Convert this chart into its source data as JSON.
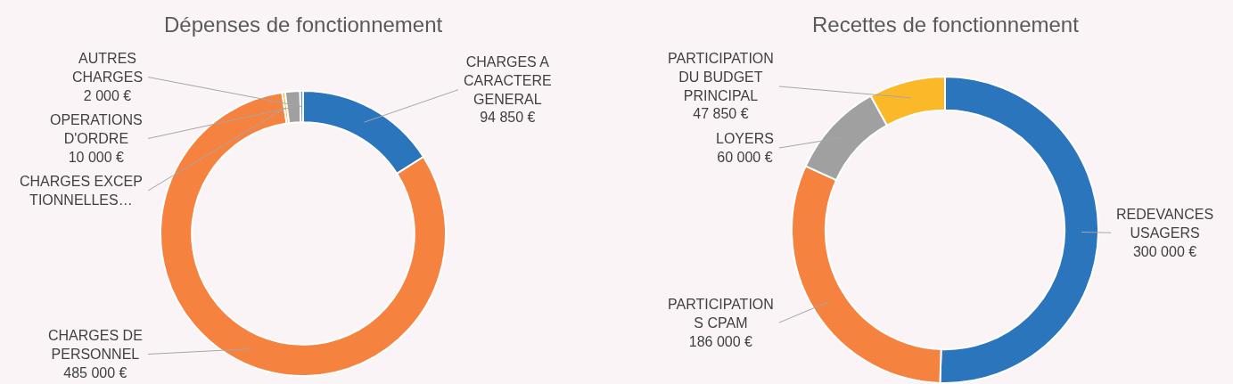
{
  "chart_data": [
    {
      "type": "donut",
      "title": "Dépenses de fonctionnement",
      "categories": [
        "CHARGES A CARACTERE GENERAL",
        "CHARGES DE PERSONNEL",
        "CHARGES EXCEPTIONNELLES…",
        "OPERATIONS D'ORDRE",
        "AUTRES CHARGES"
      ],
      "values": [
        94850,
        485000,
        2000,
        10000,
        2000
      ],
      "value_labels": [
        "94 850 €",
        "485 000 €",
        null,
        "10 000 €",
        "2 000 €"
      ],
      "colors": [
        "#2a75bb",
        "#f5823e",
        "#fbb829",
        "#a0a0a0",
        "#5b9bd5"
      ],
      "legend": false
    },
    {
      "type": "donut",
      "title": "Recettes de fonctionnement",
      "categories": [
        "REDEVANCES USAGERS",
        "PARTICIPATIONS CPAM",
        "LOYERS",
        "PARTICIPATION DU BUDGET PRINCIPAL"
      ],
      "values": [
        300000,
        186000,
        60000,
        47850
      ],
      "value_labels": [
        "300 000 €",
        "186 000 €",
        "60 000 €",
        "47 850 €"
      ],
      "colors": [
        "#2a75bb",
        "#f5823e",
        "#a0a0a0",
        "#fbb829"
      ],
      "legend": false
    }
  ]
}
